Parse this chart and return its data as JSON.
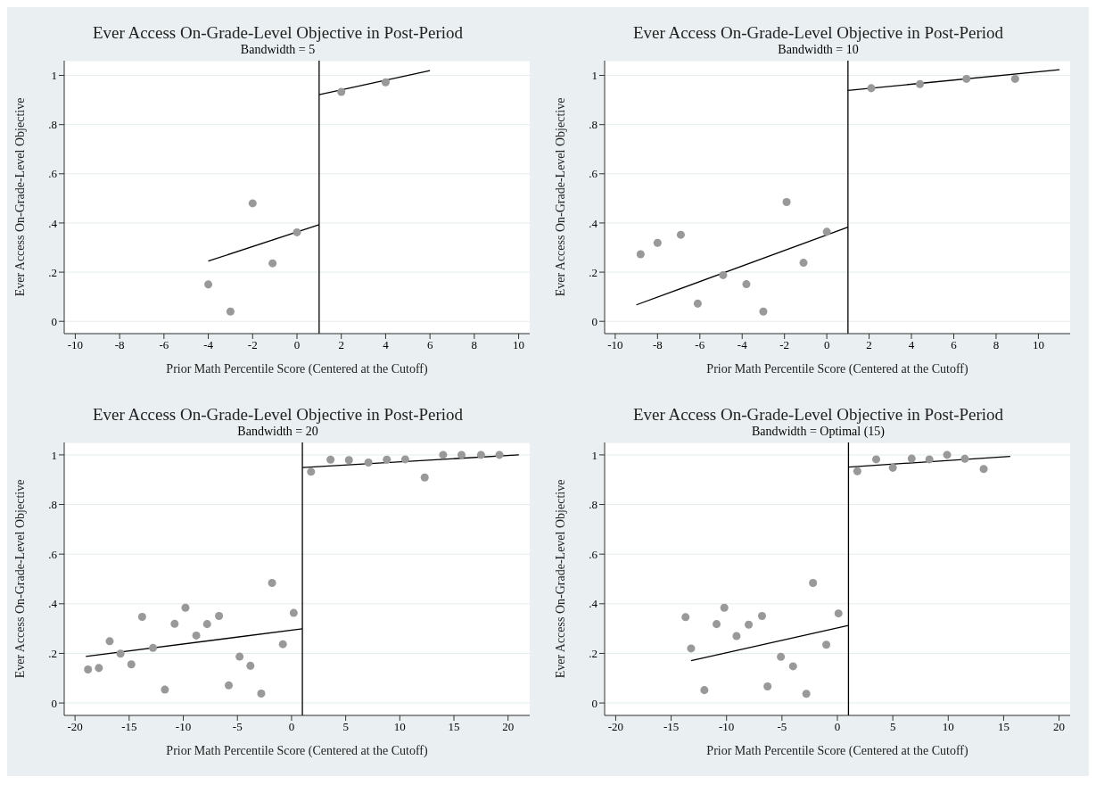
{
  "chart_data": [
    {
      "type": "scatter",
      "title": "Ever Access On-Grade-Level Objective in Post-Period",
      "subtitle": "Bandwidth = 5",
      "xlabel": "Prior Math Percentile Score (Centered at the Cutoff)",
      "ylabel": "Ever Access On-Grade-Level Objective",
      "xlim": [
        -10.5,
        10.5
      ],
      "xticks": [
        -10,
        -8,
        -6,
        -4,
        -2,
        0,
        2,
        4,
        6,
        8,
        10
      ],
      "ylim": [
        -0.05,
        1.06
      ],
      "yticks": [
        {
          "value": 0,
          "label": "0"
        },
        {
          "value": 0.2,
          "label": ".2"
        },
        {
          "value": 0.4,
          "label": ".4"
        },
        {
          "value": 0.6,
          "label": ".6"
        },
        {
          "value": 0.8,
          "label": ".8"
        },
        {
          "value": 1,
          "label": "1"
        }
      ],
      "grid": "y",
      "marker": "circle",
      "ref_lines": [
        {
          "axis": "x",
          "value": 1,
          "color": "#000000"
        }
      ],
      "series": [
        {
          "color": "#999999",
          "x": [
            -4,
            -3,
            -2,
            -1.1,
            0,
            2,
            4
          ],
          "values": [
            0.15,
            0.04,
            0.48,
            0.236,
            0.362,
            0.933,
            0.972
          ]
        },
        {
          "type": "line",
          "marker": "none",
          "color": "#000000",
          "x": [
            -4,
            1
          ],
          "values": [
            0.245,
            0.393
          ]
        },
        {
          "type": "line",
          "marker": "none",
          "color": "#000000",
          "x": [
            1,
            6
          ],
          "values": [
            0.922,
            1.02
          ]
        }
      ]
    },
    {
      "type": "scatter",
      "title": "Ever Access On-Grade-Level Objective in Post-Period",
      "subtitle": "Bandwidth = 10",
      "xlabel": "Prior Math Percentile Score (Centered at the Cutoff)",
      "ylabel": "Ever Access On-Grade-Level Objective",
      "xlim": [
        -10.5,
        11.5
      ],
      "xticks": [
        -10,
        -8,
        -6,
        -4,
        -2,
        0,
        2,
        4,
        6,
        8,
        10
      ],
      "ylim": [
        -0.05,
        1.06
      ],
      "yticks": [
        {
          "value": 0,
          "label": "0"
        },
        {
          "value": 0.2,
          "label": ".2"
        },
        {
          "value": 0.4,
          "label": ".4"
        },
        {
          "value": 0.6,
          "label": ".6"
        },
        {
          "value": 0.8,
          "label": ".8"
        },
        {
          "value": 1,
          "label": "1"
        }
      ],
      "grid": "y",
      "marker": "circle",
      "ref_lines": [
        {
          "axis": "x",
          "value": 1,
          "color": "#000000"
        }
      ],
      "series": [
        {
          "color": "#999999",
          "x": [
            -8.8,
            -8.0,
            -6.9,
            -6.1,
            -4.9,
            -3.8,
            -3.0,
            -1.9,
            -1.1,
            0,
            2.1,
            4.4,
            6.6,
            8.9
          ],
          "values": [
            0.273,
            0.319,
            0.352,
            0.072,
            0.188,
            0.151,
            0.04,
            0.485,
            0.238,
            0.364,
            0.948,
            0.965,
            0.986,
            0.986
          ]
        },
        {
          "type": "line",
          "marker": "none",
          "color": "#000000",
          "x": [
            -9,
            1
          ],
          "values": [
            0.067,
            0.383
          ]
        },
        {
          "type": "line",
          "marker": "none",
          "color": "#000000",
          "x": [
            1,
            11
          ],
          "values": [
            0.939,
            1.023
          ]
        }
      ]
    },
    {
      "type": "scatter",
      "title": "Ever Access On-Grade-Level Objective in Post-Period",
      "subtitle": "Bandwidth = 20",
      "xlabel": "Prior Math Percentile Score (Centered at the Cutoff)",
      "ylabel": "Ever Access On-Grade-Level Objective",
      "xlim": [
        -21,
        22
      ],
      "xticks": [
        -20,
        -15,
        -10,
        -5,
        0,
        5,
        10,
        15,
        20
      ],
      "ylim": [
        -0.05,
        1.05
      ],
      "yticks": [
        {
          "value": 0,
          "label": "0"
        },
        {
          "value": 0.2,
          "label": ".2"
        },
        {
          "value": 0.4,
          "label": ".4"
        },
        {
          "value": 0.6,
          "label": ".6"
        },
        {
          "value": 0.8,
          "label": ".8"
        },
        {
          "value": 1,
          "label": "1"
        }
      ],
      "grid": "y",
      "marker": "circle",
      "ref_lines": [
        {
          "axis": "x",
          "value": 1,
          "color": "#000000"
        }
      ],
      "series": [
        {
          "color": "#999999",
          "x": [
            -18.8,
            -17.8,
            -16.8,
            -15.8,
            -14.8,
            -13.8,
            -12.8,
            -11.7,
            -10.8,
            -9.8,
            -8.8,
            -7.8,
            -6.7,
            -5.8,
            -4.8,
            -3.8,
            -2.8,
            -1.8,
            -0.8,
            0.2,
            1.8,
            3.6,
            5.3,
            7.1,
            8.8,
            10.5,
            12.3,
            14.0,
            15.7,
            17.5,
            19.2
          ],
          "values": [
            0.135,
            0.141,
            0.249,
            0.199,
            0.156,
            0.347,
            0.222,
            0.054,
            0.319,
            0.384,
            0.272,
            0.318,
            0.351,
            0.071,
            0.187,
            0.15,
            0.038,
            0.484,
            0.237,
            0.363,
            0.932,
            0.981,
            0.979,
            0.969,
            0.981,
            0.982,
            0.909,
            1.0,
            1.0,
            1.0,
            1.0
          ]
        },
        {
          "type": "line",
          "marker": "none",
          "color": "#000000",
          "x": [
            -19,
            1
          ],
          "values": [
            0.188,
            0.299
          ]
        },
        {
          "type": "line",
          "marker": "none",
          "color": "#000000",
          "x": [
            1,
            21
          ],
          "values": [
            0.949,
            1.0
          ]
        }
      ]
    },
    {
      "type": "scatter",
      "title": "Ever Access On-Grade-Level Objective in Post-Period",
      "subtitle": "Bandwidth = Optimal (15)",
      "xlabel": "Prior Math Percentile Score (Centered at the Cutoff)",
      "ylabel": "Ever Access On-Grade-Level Objective",
      "xlim": [
        -21,
        21
      ],
      "xticks": [
        -20,
        -15,
        -10,
        -5,
        0,
        5,
        10,
        15,
        20
      ],
      "ylim": [
        -0.05,
        1.05
      ],
      "yticks": [
        {
          "value": 0,
          "label": "0"
        },
        {
          "value": 0.2,
          "label": ".2"
        },
        {
          "value": 0.4,
          "label": ".4"
        },
        {
          "value": 0.6,
          "label": ".6"
        },
        {
          "value": 0.8,
          "label": ".8"
        },
        {
          "value": 1,
          "label": "1"
        }
      ],
      "grid": "y",
      "marker": "circle",
      "ref_lines": [
        {
          "axis": "x",
          "value": 1,
          "color": "#000000"
        }
      ],
      "series": [
        {
          "color": "#999999",
          "x": [
            -13.7,
            -13.2,
            -12.0,
            -10.9,
            -10.2,
            -9.1,
            -8.0,
            -6.8,
            -6.3,
            -5.1,
            -4.0,
            -2.8,
            -2.2,
            -1.0,
            0.1,
            1.8,
            3.5,
            5.0,
            6.7,
            8.3,
            9.9,
            11.5,
            13.2
          ],
          "values": [
            0.346,
            0.22,
            0.052,
            0.318,
            0.384,
            0.27,
            0.316,
            0.351,
            0.067,
            0.186,
            0.148,
            0.037,
            0.484,
            0.235,
            0.361,
            0.934,
            0.982,
            0.948,
            0.985,
            0.982,
            1.0,
            0.984,
            0.943
          ]
        },
        {
          "type": "line",
          "marker": "none",
          "color": "#000000",
          "x": [
            -13.2,
            1
          ],
          "values": [
            0.171,
            0.313
          ]
        },
        {
          "type": "line",
          "marker": "none",
          "color": "#000000",
          "x": [
            1,
            15.6
          ],
          "values": [
            0.951,
            0.994
          ]
        }
      ]
    }
  ]
}
